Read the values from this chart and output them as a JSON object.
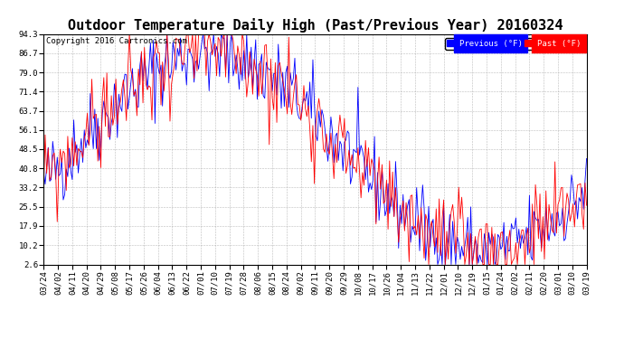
{
  "title": "Outdoor Temperature Daily High (Past/Previous Year) 20160324",
  "copyright": "Copyright 2016 Cartronics.com",
  "legend_prev": "Previous (°F)",
  "legend_past": "Past (°F)",
  "color_prev": "blue",
  "color_past": "red",
  "background_color": "white",
  "grid_color": "#aaaaaa",
  "yticks": [
    2.6,
    10.2,
    17.9,
    25.5,
    33.2,
    40.8,
    48.5,
    56.1,
    63.7,
    71.4,
    79.0,
    86.7,
    94.3
  ],
  "ylim": [
    2.6,
    94.3
  ],
  "x_labels": [
    "03/24",
    "04/02",
    "04/11",
    "04/20",
    "04/29",
    "05/08",
    "05/17",
    "05/26",
    "06/04",
    "06/13",
    "06/22",
    "07/01",
    "07/10",
    "07/19",
    "07/28",
    "08/06",
    "08/15",
    "08/24",
    "09/02",
    "09/11",
    "09/20",
    "09/29",
    "10/08",
    "10/17",
    "10/26",
    "11/04",
    "11/13",
    "11/22",
    "12/01",
    "12/10",
    "12/19",
    "01/15",
    "01/24",
    "02/02",
    "02/11",
    "02/20",
    "03/01",
    "03/10",
    "03/19"
  ],
  "title_fontsize": 11,
  "tick_fontsize": 6.5,
  "copyright_fontsize": 6.5,
  "n_days": 362,
  "seed_prev": 42,
  "seed_past": 99,
  "summer_peak": 87,
  "winter_min": 8,
  "peak_day": 110,
  "noise_prev": 8,
  "noise_past": 9
}
